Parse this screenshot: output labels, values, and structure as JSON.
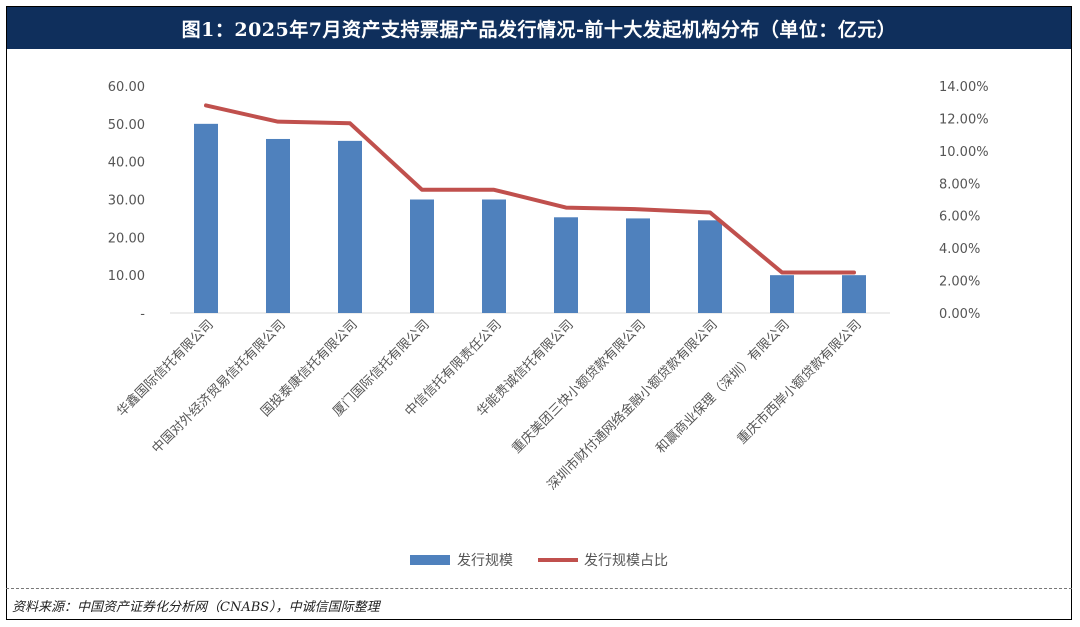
{
  "figure": {
    "title": "图1：2025年7月资产支持票据产品发行情况-前十大发起机构分布（单位：亿元）",
    "source": "资料来源：中国资产证券化分析网（CNABS），中诚信国际整理"
  },
  "colors": {
    "title_bg": "#0f2f5c",
    "bar": "#4f81bd",
    "line": "#c0504d",
    "axis_text": "#555555"
  },
  "chart_data": {
    "type": "bar",
    "categories": [
      "华鑫国际信托有限公司",
      "中国对外经济贸易信托有限公司",
      "国投泰康信托有限公司",
      "厦门国际信托有限公司",
      "中信信托有限责任公司",
      "华能贵诚信托有限公司",
      "重庆美团三快小额贷款有限公司",
      "深圳市财付通网络金融小额贷款有限公司",
      "和赢商业保理（深圳）有限公司",
      "重庆市西岸小额贷款有限公司"
    ],
    "series": [
      {
        "name": "发行规模",
        "type": "bar",
        "axis": "left",
        "values": [
          50.0,
          46.0,
          45.5,
          30.0,
          30.0,
          25.3,
          25.0,
          24.5,
          10.0,
          10.0
        ]
      },
      {
        "name": "发行规模占比",
        "type": "line",
        "axis": "right",
        "values": [
          12.8,
          11.8,
          11.7,
          7.6,
          7.6,
          6.5,
          6.4,
          6.2,
          2.5,
          2.5
        ]
      }
    ],
    "y_left": {
      "ylim": [
        0,
        60
      ],
      "ticks": [
        "-",
        "10.00",
        "20.00",
        "30.00",
        "40.00",
        "50.00",
        "60.00"
      ]
    },
    "y_right": {
      "ylim": [
        0,
        14
      ],
      "ticks": [
        "0.00%",
        "2.00%",
        "4.00%",
        "6.00%",
        "8.00%",
        "10.00%",
        "12.00%",
        "14.00%"
      ]
    },
    "grid": false,
    "legend_position": "bottom"
  }
}
